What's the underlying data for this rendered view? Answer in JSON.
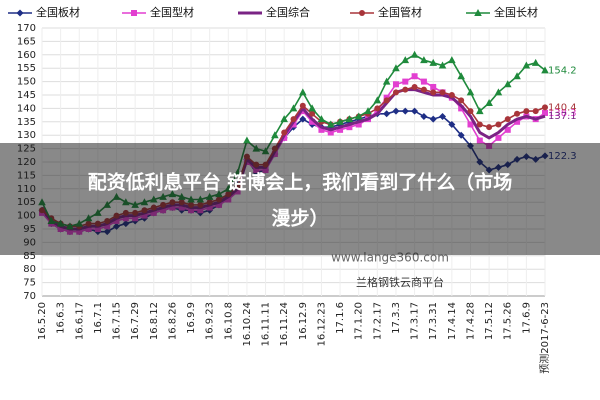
{
  "chart_data": {
    "type": "line",
    "categories": [
      "16.5.20",
      null,
      "16.6.3",
      null,
      "16.6.17",
      null,
      "16.7.1",
      null,
      "16.7.15",
      null,
      "16.7.29",
      null,
      "16.8.12",
      null,
      "16.8.26",
      null,
      "16.9.9",
      null,
      "16.9.23",
      null,
      "16.10.8",
      null,
      "16.10.24",
      null,
      "16.11.11",
      null,
      "16.11.24",
      null,
      "16.12.9",
      null,
      "16.12.23",
      null,
      "17.1.6",
      null,
      "17.1.20",
      null,
      "17.2.17",
      null,
      "17.3.3",
      null,
      "17.3.17",
      null,
      "17.3.31",
      null,
      "17.4.14",
      null,
      "17.4.28",
      null,
      "17.5.12",
      null,
      "17.5.26",
      null,
      "17.6.9",
      null,
      "预测2017-6-23"
    ],
    "series": [
      {
        "name": "全国板材",
        "color": "#1f2f86",
        "marker": "diamond",
        "values": [
          102,
          97,
          95,
          94,
          94,
          95,
          94,
          94,
          96,
          97,
          98,
          99,
          101,
          102,
          103,
          102,
          102,
          101,
          102,
          104,
          107,
          112,
          121,
          116,
          117,
          123,
          129,
          133,
          136,
          134,
          133,
          133,
          134,
          135,
          136,
          137,
          138,
          138,
          139,
          139,
          139,
          137,
          136,
          137,
          134,
          130,
          126,
          120,
          117,
          118,
          119,
          121,
          122,
          121,
          122.3
        ]
      },
      {
        "name": "全国型材",
        "color": "#e23fd0",
        "marker": "square",
        "values": [
          101,
          97,
          95,
          94,
          94,
          95,
          95,
          96,
          98,
          99,
          99,
          100,
          101,
          102,
          103,
          103,
          102,
          102,
          103,
          104,
          106,
          109,
          120,
          117,
          117,
          123,
          129,
          134,
          139,
          135,
          132,
          131,
          132,
          133,
          134,
          136,
          139,
          144,
          149,
          150,
          152,
          150,
          148,
          146,
          144,
          140,
          134,
          128,
          126,
          129,
          132,
          135,
          137,
          136,
          138.3
        ]
      },
      {
        "name": "全国综合",
        "color": "#7a2384",
        "marker": "none",
        "values": [
          103,
          98,
          96,
          95,
          95,
          96,
          96,
          97,
          99,
          100,
          100,
          101,
          102,
          103,
          104,
          104,
          103,
          103,
          104,
          105,
          107,
          110,
          121,
          118,
          118,
          124,
          130,
          135,
          140,
          136,
          133,
          132,
          133,
          134,
          135,
          136,
          138,
          142,
          146,
          147,
          147,
          146,
          145,
          145,
          144,
          141,
          137,
          131,
          129,
          131,
          134,
          136,
          137,
          136,
          137.1
        ]
      },
      {
        "name": "全国管材",
        "color": "#a8353a",
        "marker": "circle",
        "values": [
          102,
          99,
          97,
          96,
          96,
          97,
          97,
          98,
          100,
          101,
          101,
          102,
          103,
          104,
          105,
          105,
          104,
          104,
          105,
          106,
          108,
          111,
          122,
          119,
          119,
          125,
          131,
          136,
          141,
          138,
          135,
          134,
          135,
          136,
          137,
          138,
          140,
          143,
          146,
          147,
          148,
          147,
          146,
          146,
          145,
          143,
          139,
          134,
          133,
          134,
          136,
          138,
          139,
          139,
          140.4
        ]
      },
      {
        "name": "全国长材",
        "color": "#1f8a3c",
        "marker": "triangle",
        "values": [
          105,
          98,
          97,
          96,
          97,
          99,
          101,
          104,
          107,
          105,
          104,
          105,
          106,
          107,
          108,
          107,
          106,
          106,
          107,
          108,
          110,
          116,
          128,
          125,
          124,
          130,
          136,
          140,
          146,
          140,
          136,
          134,
          135,
          136,
          137,
          139,
          143,
          150,
          155,
          158,
          160,
          158,
          157,
          156,
          158,
          152,
          146,
          139,
          142,
          146,
          149,
          152,
          156,
          157,
          154.2
        ]
      }
    ],
    "ylim": [
      70,
      170
    ],
    "yticks": [
      70,
      75,
      80,
      85,
      90,
      95,
      100,
      105,
      110,
      115,
      120,
      125,
      130,
      135,
      140,
      145,
      150,
      155,
      160,
      165,
      170
    ],
    "grid": true,
    "legend": "top"
  },
  "watermark": [
    "www.lange360.com",
    "兰格钢铁云商平台"
  ],
  "overlay_text": [
    "配资低利息平台 链博会上，我们看到了什么（市场",
    "漫步）"
  ]
}
